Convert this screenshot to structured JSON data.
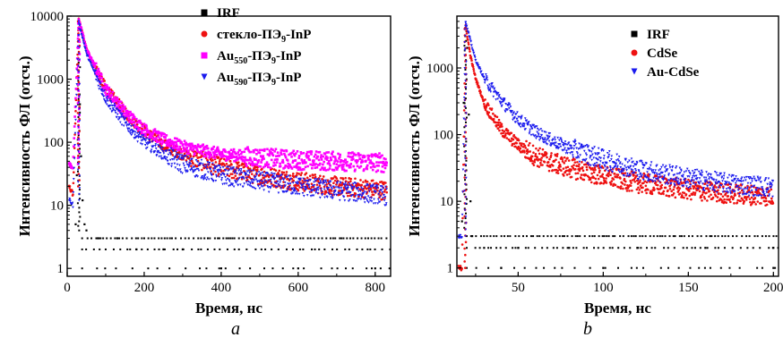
{
  "colors": {
    "IRF": "#000000",
    "glass": "#ee1111",
    "au550": "#ff00ff",
    "au590": "#1a1aee",
    "cdse": "#ee1111",
    "aucdse": "#1a1aee"
  },
  "chart_data": [
    {
      "type": "scatter",
      "panel_label": "a",
      "xlabel": "Время, нс",
      "ylabel": "Интенсивность ФЛ (отсч.)",
      "xlim": [
        0,
        840
      ],
      "ylim": [
        0.75,
        10000
      ],
      "yscale": "log",
      "xticks": [
        0,
        200,
        400,
        600,
        800
      ],
      "yticks": [
        1,
        10,
        100,
        1000,
        10000
      ],
      "grid": false,
      "legend_position": "top-right",
      "series": [
        {
          "name": "IRF",
          "marker": "square",
          "points": [
            [
              22,
              5
            ],
            [
              25,
              30
            ],
            [
              28,
              400
            ],
            [
              30,
              2000
            ],
            [
              33,
              400
            ],
            [
              36,
              60
            ],
            [
              40,
              12
            ],
            [
              45,
              5
            ],
            [
              50,
              4
            ],
            [
              80,
              3
            ],
            [
              130,
              3
            ],
            [
              180,
              2
            ],
            [
              250,
              2
            ],
            [
              300,
              2
            ],
            [
              400,
              1
            ],
            [
              600,
              1
            ],
            [
              800,
              1
            ]
          ]
        },
        {
          "name": "стекло-ПЭ9-InP",
          "name_parts": {
            "main": "стекло-ПЭ",
            "sub": "9",
            "tail": "-InP"
          },
          "marker": "circle",
          "points": [
            [
              5,
              20
            ],
            [
              15,
              15
            ],
            [
              30,
              9000
            ],
            [
              50,
              3000
            ],
            [
              100,
              700
            ],
            [
              150,
              300
            ],
            [
              200,
              150
            ],
            [
              250,
              90
            ],
            [
              300,
              65
            ],
            [
              400,
              40
            ],
            [
              500,
              30
            ],
            [
              600,
              24
            ],
            [
              700,
              20
            ],
            [
              800,
              18
            ],
            [
              830,
              17
            ]
          ]
        },
        {
          "name": "Au550-ПЭ9-InP",
          "name_parts": {
            "main": "Au",
            "sub": "550",
            "mid": "-ПЭ",
            "sub2": "9",
            "tail": "-InP"
          },
          "marker": "square",
          "points": [
            [
              5,
              45
            ],
            [
              15,
              40
            ],
            [
              30,
              9000
            ],
            [
              50,
              3000
            ],
            [
              100,
              700
            ],
            [
              150,
              300
            ],
            [
              200,
              160
            ],
            [
              250,
              110
            ],
            [
              300,
              85
            ],
            [
              400,
              65
            ],
            [
              500,
              57
            ],
            [
              600,
              52
            ],
            [
              700,
              50
            ],
            [
              800,
              48
            ],
            [
              830,
              47
            ]
          ]
        },
        {
          "name": "Au590-ПЭ9-InP",
          "name_parts": {
            "main": "Au",
            "sub": "590",
            "mid": "-ПЭ",
            "sub2": "9",
            "tail": "-InP"
          },
          "marker": "triangle-down",
          "points": [
            [
              5,
              12
            ],
            [
              15,
              10
            ],
            [
              30,
              8000
            ],
            [
              50,
              2500
            ],
            [
              100,
              500
            ],
            [
              150,
              200
            ],
            [
              200,
              100
            ],
            [
              250,
              65
            ],
            [
              300,
              45
            ],
            [
              400,
              30
            ],
            [
              500,
              24
            ],
            [
              600,
              20
            ],
            [
              700,
              17
            ],
            [
              800,
              15
            ],
            [
              830,
              14
            ]
          ]
        }
      ]
    },
    {
      "type": "scatter",
      "panel_label": "b",
      "xlabel": "Время, нс",
      "ylabel": "Интенсивность ФЛ (отсч.)",
      "xlim": [
        14,
        203
      ],
      "ylim": [
        0.75,
        6000
      ],
      "yscale": "log",
      "xticks": [
        50,
        100,
        150,
        200
      ],
      "yticks": [
        1,
        10,
        100,
        1000
      ],
      "grid": false,
      "legend_position": "top-right",
      "series": [
        {
          "name": "IRF",
          "marker": "square",
          "points": [
            [
              16,
              1
            ],
            [
              17,
              5
            ],
            [
              18,
              300
            ],
            [
              19,
              4000
            ],
            [
              20,
              2000
            ],
            [
              21,
              200
            ],
            [
              22,
              10
            ],
            [
              23,
              3
            ],
            [
              30,
              2
            ],
            [
              50,
              2
            ],
            [
              80,
              2
            ],
            [
              120,
              2
            ],
            [
              160,
              2
            ],
            [
              200,
              2
            ],
            [
              40,
              1
            ],
            [
              100,
              1
            ],
            [
              200,
              1
            ]
          ]
        },
        {
          "name": "CdSe",
          "marker": "circle",
          "points": [
            [
              15,
              1
            ],
            [
              17,
              1
            ],
            [
              19,
              4500
            ],
            [
              22,
              1500
            ],
            [
              25,
              700
            ],
            [
              30,
              300
            ],
            [
              40,
              120
            ],
            [
              50,
              70
            ],
            [
              60,
              48
            ],
            [
              70,
              38
            ],
            [
              80,
              32
            ],
            [
              100,
              24
            ],
            [
              120,
              19
            ],
            [
              150,
              15
            ],
            [
              175,
              13
            ],
            [
              200,
              12
            ]
          ]
        },
        {
          "name": "Au-CdSe",
          "marker": "triangle-down",
          "points": [
            [
              15,
              3
            ],
            [
              17,
              3
            ],
            [
              19,
              5000
            ],
            [
              22,
              2500
            ],
            [
              25,
              1300
            ],
            [
              30,
              700
            ],
            [
              40,
              320
            ],
            [
              50,
              170
            ],
            [
              60,
              110
            ],
            [
              70,
              80
            ],
            [
              80,
              62
            ],
            [
              100,
              42
            ],
            [
              120,
              30
            ],
            [
              150,
              22
            ],
            [
              175,
              18
            ],
            [
              200,
              16
            ]
          ]
        }
      ]
    }
  ]
}
